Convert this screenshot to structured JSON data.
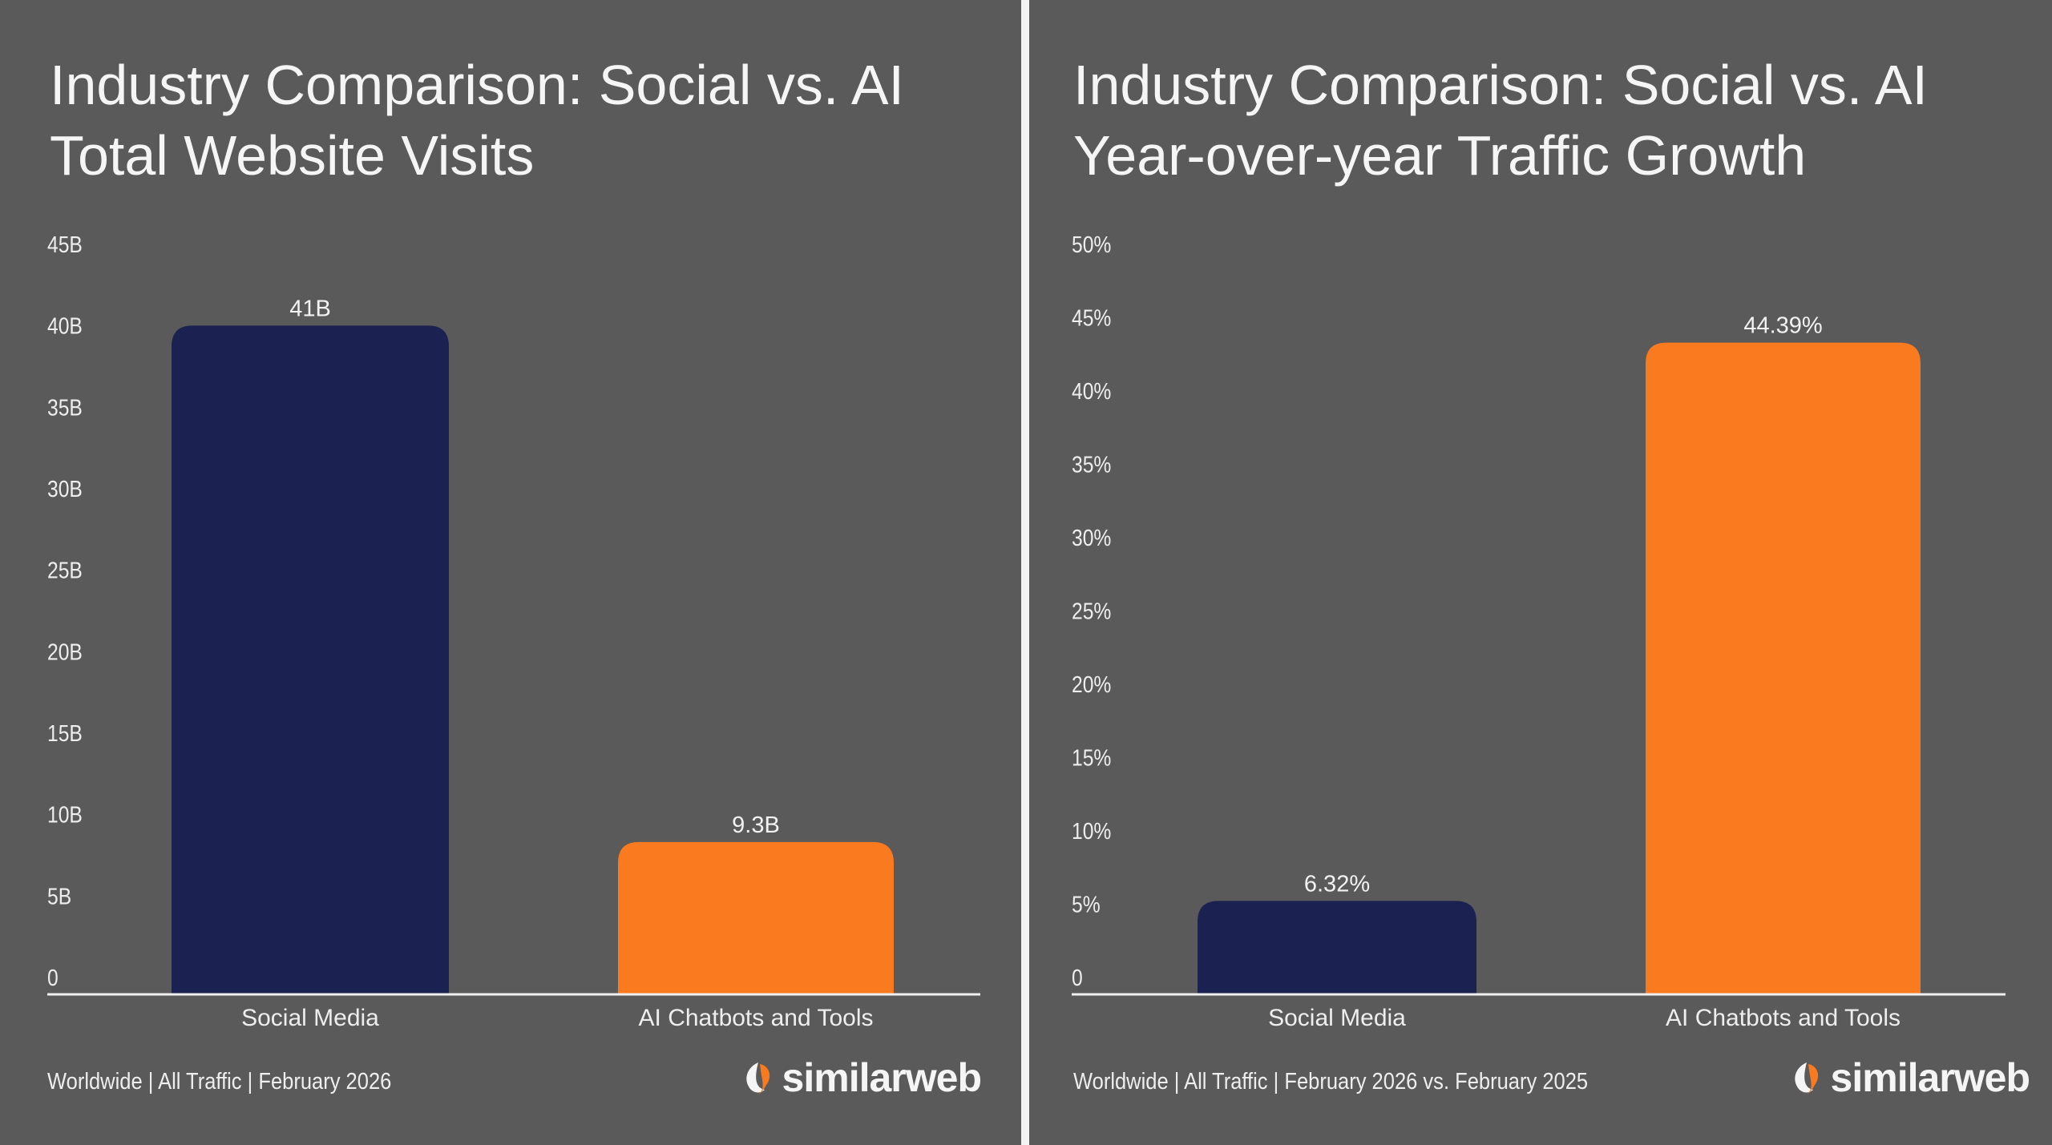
{
  "colors": {
    "background": "#5a5a5a",
    "social": "#1b2150",
    "ai": "#f97a1f",
    "text": "#f2f2f2"
  },
  "brand": "similarweb",
  "chart_data": [
    {
      "type": "bar",
      "title": [
        "Industry Comparison: Social vs. AI",
        "Total Website Visits"
      ],
      "categories": [
        "Social Media",
        "AI Chatbots and Tools"
      ],
      "values": [
        41,
        9.3
      ],
      "data_labels": [
        "41B",
        "9.3B"
      ],
      "bar_colors": [
        "#1b2150",
        "#f97a1f"
      ],
      "ylim": [
        0,
        45
      ],
      "yticks": [
        0,
        5,
        10,
        15,
        20,
        25,
        30,
        35,
        40,
        45
      ],
      "ytick_labels": [
        "0",
        "5B",
        "10B",
        "15B",
        "20B",
        "25B",
        "30B",
        "35B",
        "40B",
        "45B"
      ],
      "xlabel": "",
      "ylabel": "",
      "grid": false,
      "footer": "Worldwide | All Traffic | February 2026"
    },
    {
      "type": "bar",
      "title": [
        "Industry Comparison: Social vs. AI",
        "Year-over-year Traffic Growth"
      ],
      "categories": [
        "Social Media",
        "AI Chatbots and Tools"
      ],
      "values": [
        6.32,
        44.39
      ],
      "data_labels": [
        "6.32%",
        "44.39%"
      ],
      "bar_colors": [
        "#1b2150",
        "#f97a1f"
      ],
      "ylim": [
        0,
        50
      ],
      "yticks": [
        0,
        5,
        10,
        15,
        20,
        25,
        30,
        35,
        40,
        45,
        50
      ],
      "ytick_labels": [
        "0",
        "5%",
        "10%",
        "15%",
        "20%",
        "25%",
        "30%",
        "35%",
        "40%",
        "45%",
        "50%"
      ],
      "xlabel": "",
      "ylabel": "",
      "grid": false,
      "footer": "Worldwide | All Traffic | February 2026 vs. February 2025"
    }
  ]
}
